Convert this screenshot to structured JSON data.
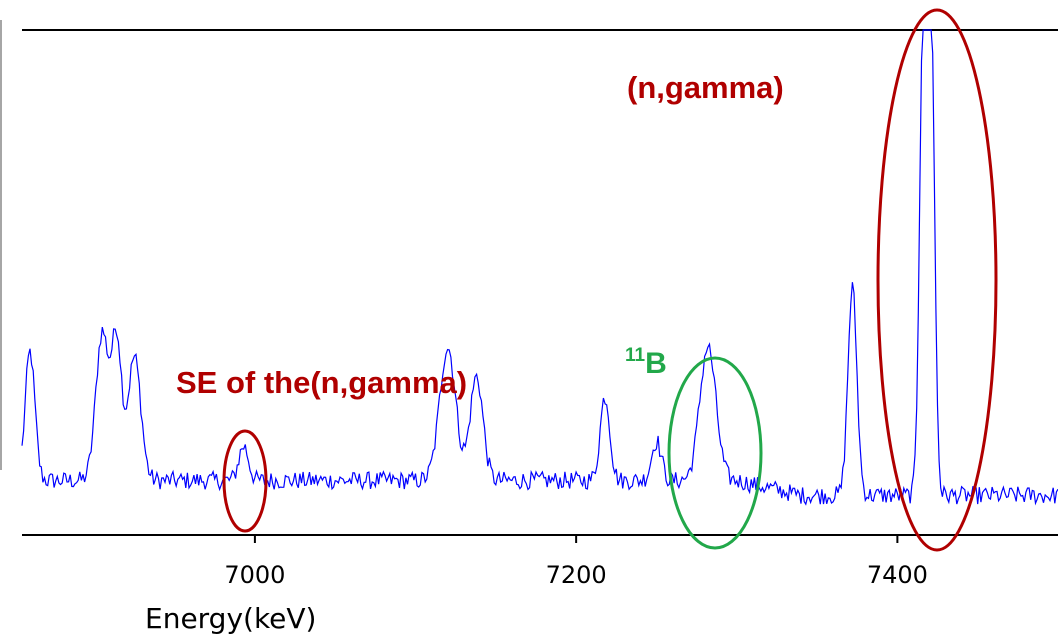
{
  "chart_data": {
    "type": "line",
    "xlabel": "Energy(keV)",
    "ylabel": "",
    "xlim": [
      6855,
      7500
    ],
    "ylim": [
      -0.02,
      1.0
    ],
    "x_ticks": [
      7000,
      7200,
      7400
    ],
    "x_tick_labels": [
      "7000",
      "7200",
      "7400"
    ],
    "series_color": "#0000ff",
    "baseline": 0.09,
    "noise_amplitude": 0.018,
    "peaks": [
      {
        "x": 6860,
        "height": 0.26,
        "width": 3
      },
      {
        "x": 6905,
        "height": 0.3,
        "width": 4
      },
      {
        "x": 6914,
        "height": 0.28,
        "width": 3
      },
      {
        "x": 6925,
        "height": 0.25,
        "width": 4
      },
      {
        "x": 6993,
        "height": 0.07,
        "width": 3
      },
      {
        "x": 7120,
        "height": 0.27,
        "width": 5
      },
      {
        "x": 7138,
        "height": 0.21,
        "width": 4
      },
      {
        "x": 7218,
        "height": 0.17,
        "width": 3
      },
      {
        "x": 7250,
        "height": 0.08,
        "width": 3
      },
      {
        "x": 7282,
        "height": 0.27,
        "width": 5
      },
      {
        "x": 7372,
        "height": 0.42,
        "width": 2.8
      },
      {
        "x": 7416,
        "height": 0.96,
        "width": 2.2
      },
      {
        "x": 7421,
        "height": 0.96,
        "width": 2.2
      }
    ],
    "frame_color": "#000000"
  },
  "annotations": {
    "ngamma": {
      "label": "(n,gamma)",
      "color": "#b00000"
    },
    "se": {
      "label": "SE of the(n,gamma)",
      "color": "#b00000"
    },
    "boron": {
      "superscript": "11",
      "label": "B",
      "color": "#22a84a"
    }
  }
}
